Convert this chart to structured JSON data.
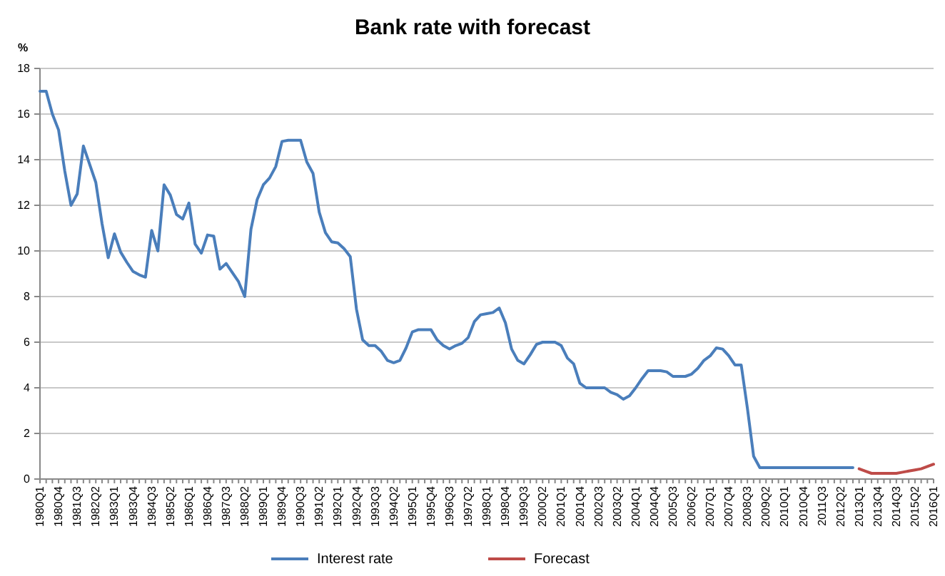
{
  "chart_data": {
    "type": "line",
    "title": "Bank rate with forecast",
    "ylabel": "%",
    "categories": [
      "1980Q1",
      null,
      null,
      "1980Q4",
      null,
      null,
      "1981Q3",
      null,
      null,
      "1982Q2",
      null,
      null,
      "1983Q1",
      null,
      null,
      "1983Q4",
      null,
      null,
      "1984Q3",
      null,
      null,
      "1985Q2",
      null,
      null,
      "1986Q1",
      null,
      null,
      "1986Q4",
      null,
      null,
      "1987Q3",
      null,
      null,
      "1988Q2",
      null,
      null,
      "1989Q1",
      null,
      null,
      "1989Q4",
      null,
      null,
      "1990Q3",
      null,
      null,
      "1991Q2",
      null,
      null,
      "1992Q1",
      null,
      null,
      "1992Q4",
      null,
      null,
      "1993Q3",
      null,
      null,
      "1994Q2",
      null,
      null,
      "1995Q1",
      null,
      null,
      "1995Q4",
      null,
      null,
      "1996Q3",
      null,
      null,
      "1997Q2",
      null,
      null,
      "1998Q1",
      null,
      null,
      "1998Q4",
      null,
      null,
      "1999Q3",
      null,
      null,
      "2000Q2",
      null,
      null,
      "2001Q1",
      null,
      null,
      "2001Q4",
      null,
      null,
      "2002Q3",
      null,
      null,
      "2003Q2",
      null,
      null,
      "2004Q1",
      null,
      null,
      "2004Q4",
      null,
      null,
      "2005Q3",
      null,
      null,
      "2006Q2",
      null,
      null,
      "2007Q1",
      null,
      null,
      "2007Q4",
      null,
      null,
      "2008Q3",
      null,
      null,
      "2009Q2",
      null,
      null,
      "2010Q1",
      null,
      null,
      "2010Q4",
      null,
      null,
      "2011Q3",
      null,
      null,
      "2012Q2",
      null,
      null,
      "2013Q1",
      null,
      null,
      "2013Q4",
      null,
      null,
      "2014Q3",
      null,
      null,
      "2015Q2",
      null,
      null,
      "2016Q1"
    ],
    "series": [
      {
        "name": "Interest rate",
        "color": "#4a7ebb",
        "values": [
          17.0,
          17.0,
          16.0,
          15.3,
          13.5,
          12.0,
          12.5,
          14.6,
          13.8,
          13.0,
          11.2,
          9.7,
          10.75,
          9.95,
          9.5,
          9.1,
          8.95,
          8.85,
          10.9,
          10.0,
          12.9,
          12.45,
          11.6,
          11.4,
          12.1,
          10.3,
          9.9,
          10.7,
          10.65,
          9.2,
          9.45,
          9.05,
          8.65,
          8.0,
          10.95,
          12.25,
          12.9,
          13.2,
          13.7,
          14.8,
          14.85,
          14.85,
          14.85,
          13.9,
          13.4,
          11.7,
          10.8,
          10.4,
          10.35,
          10.1,
          9.75,
          7.45,
          6.1,
          5.85,
          5.85,
          5.6,
          5.2,
          5.1,
          5.2,
          5.75,
          6.45,
          6.55,
          6.55,
          6.55,
          6.1,
          5.85,
          5.7,
          5.85,
          5.95,
          6.2,
          6.9,
          7.2,
          7.25,
          7.3,
          7.5,
          6.85,
          5.7,
          5.2,
          5.05,
          5.45,
          5.9,
          6.0,
          6.0,
          6.0,
          5.85,
          5.3,
          5.05,
          4.2,
          4.0,
          4.0,
          4.0,
          4.0,
          3.8,
          3.7,
          3.5,
          3.65,
          4.0,
          4.4,
          4.75,
          4.75,
          4.75,
          4.7,
          4.5,
          4.5,
          4.5,
          4.6,
          4.85,
          5.2,
          5.4,
          5.75,
          5.7,
          5.4,
          5.0,
          5.0,
          3.1,
          1.0,
          0.5,
          0.5,
          0.5,
          0.5,
          0.5,
          0.5,
          0.5,
          0.5,
          0.5,
          0.5,
          0.5,
          0.5,
          0.5,
          0.5,
          0.5,
          0.5,
          null,
          null,
          null,
          null,
          null,
          null,
          null,
          null,
          null,
          null,
          null,
          null,
          null
        ]
      },
      {
        "name": "Forecast",
        "color": "#be4b48",
        "values": [
          null,
          null,
          null,
          null,
          null,
          null,
          null,
          null,
          null,
          null,
          null,
          null,
          null,
          null,
          null,
          null,
          null,
          null,
          null,
          null,
          null,
          null,
          null,
          null,
          null,
          null,
          null,
          null,
          null,
          null,
          null,
          null,
          null,
          null,
          null,
          null,
          null,
          null,
          null,
          null,
          null,
          null,
          null,
          null,
          null,
          null,
          null,
          null,
          null,
          null,
          null,
          null,
          null,
          null,
          null,
          null,
          null,
          null,
          null,
          null,
          null,
          null,
          null,
          null,
          null,
          null,
          null,
          null,
          null,
          null,
          null,
          null,
          null,
          null,
          null,
          null,
          null,
          null,
          null,
          null,
          null,
          null,
          null,
          null,
          null,
          null,
          null,
          null,
          null,
          null,
          null,
          null,
          null,
          null,
          null,
          null,
          null,
          null,
          null,
          null,
          null,
          null,
          null,
          null,
          null,
          null,
          null,
          null,
          null,
          null,
          null,
          null,
          null,
          null,
          null,
          null,
          null,
          null,
          null,
          null,
          null,
          null,
          null,
          null,
          null,
          null,
          null,
          null,
          null,
          null,
          null,
          null,
          0.45,
          0.35,
          0.25,
          0.25,
          0.25,
          0.25,
          0.25,
          0.3,
          0.35,
          0.4,
          0.45,
          0.55,
          0.65
        ]
      }
    ],
    "ylim": [
      0,
      18
    ],
    "yticks": [
      0,
      2,
      4,
      6,
      8,
      10,
      12,
      14,
      16,
      18
    ],
    "grid": "y",
    "legend": "bottom",
    "marker": "none",
    "line_style": "solid"
  }
}
